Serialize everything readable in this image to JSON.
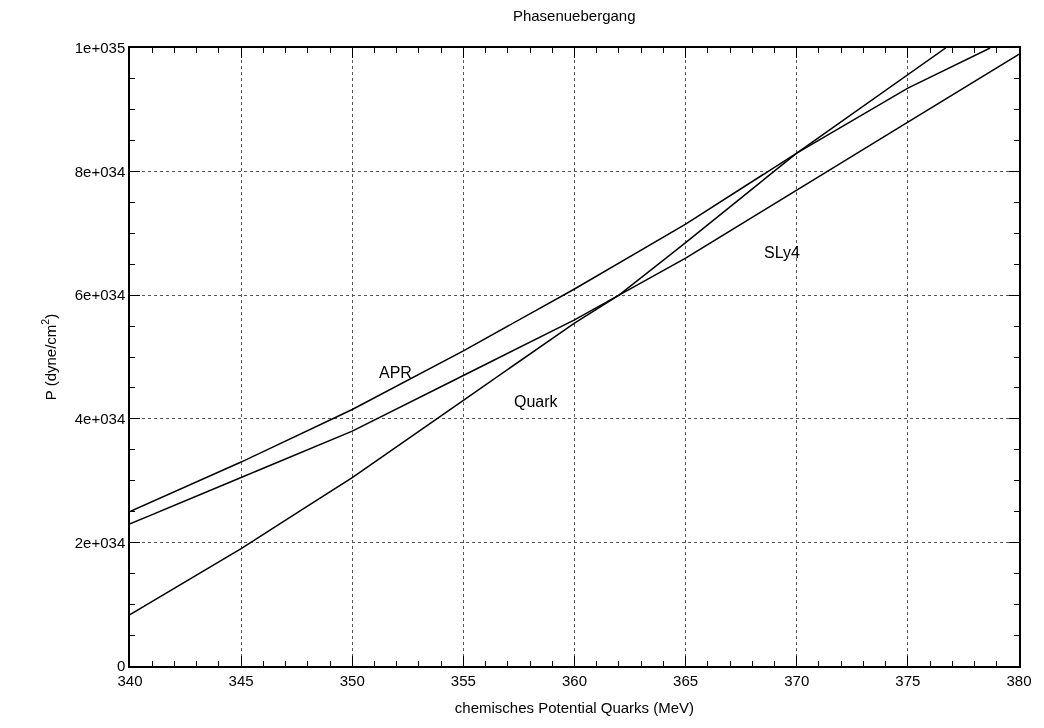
{
  "chart_data": {
    "type": "line",
    "title": "Phasenuebergang",
    "xlabel": "chemisches Potential Quarks (MeV)",
    "ylabel": "P (dyne/cm$^{2}$)",
    "series": [
      {
        "name": "APR",
        "color": "#000000",
        "x": [
          340,
          345,
          350,
          355,
          360,
          365,
          370,
          375,
          378.7
        ],
        "values": [
          2.5e+34,
          3.3e+34,
          4.15e+34,
          5.1e+34,
          6.1e+34,
          7.15e+34,
          8.3e+34,
          9.35e+34,
          1e+35
        ]
      },
      {
        "name": "SLy4",
        "color": "#000000",
        "x": [
          340,
          341,
          345,
          350,
          355,
          360,
          365,
          370,
          375,
          380
        ],
        "values": [
          2.3e+34,
          2.45e+34,
          3.05e+34,
          3.8e+34,
          4.7e+34,
          5.6e+34,
          6.6e+34,
          7.7e+34,
          8.8e+34,
          9.9e+34
        ]
      },
      {
        "name": "Quark",
        "color": "#000000",
        "x": [
          340,
          345,
          350,
          355,
          360,
          362,
          365,
          370,
          376.7
        ],
        "values": [
          8.3e+33,
          1.9e+34,
          3.05e+34,
          4.3e+34,
          5.55e+34,
          6e+34,
          6.85e+34,
          8.3e+34,
          1e+35
        ]
      }
    ],
    "xlim": [
      340,
      380
    ],
    "xticks": [
      340,
      345,
      350,
      355,
      360,
      365,
      370,
      375,
      380
    ],
    "ylim": [
      0,
      1e+35
    ],
    "yticks": [
      0,
      {
        "value": 2e+34,
        "label": "2e+034"
      },
      {
        "value": 4e+34,
        "label": "4e+034"
      },
      {
        "value": 6e+34,
        "label": "6e+034"
      },
      {
        "value": 8e+34,
        "label": "8e+034"
      },
      {
        "value": 1e+35,
        "label": "1e+035"
      }
    ],
    "grid": true,
    "legend": false,
    "line_style": "solid",
    "marker": "none"
  }
}
